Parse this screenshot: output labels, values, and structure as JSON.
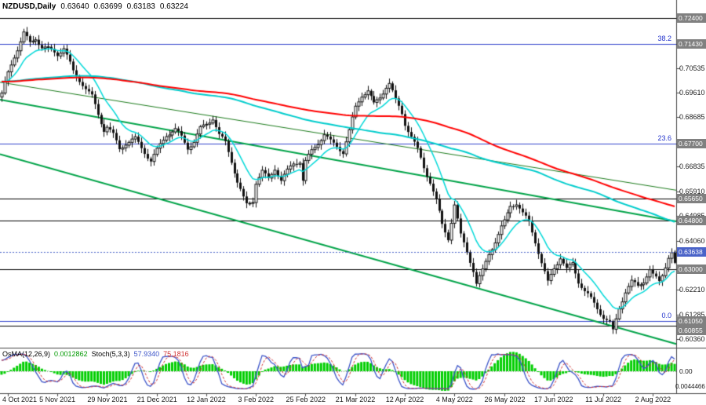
{
  "title": {
    "symbol_period": "NZDUSD,Daily",
    "open": "0.63640",
    "high": "0.63699",
    "low": "0.63183",
    "close": "0.63224"
  },
  "indicator_panel": {
    "osma_label": "OsMA(12,26,9)",
    "osma_value": "0.0012862",
    "stoch_label": "Stoch(5,3,3)",
    "stoch_main_value": "57.9340",
    "stoch_signal_value": "75.1816",
    "scale_zero_label": "0.00",
    "scale_bottom_label": "0.0044466"
  },
  "price_axis": {
    "grid_labels": [
      "0.70535",
      "0.69610",
      "0.68685",
      "0.66835",
      "0.65910",
      "0.64985",
      "0.64060",
      "0.62210",
      "0.61285",
      "0.60360"
    ],
    "line_badges": [
      "0.72400",
      "0.71430",
      "0.67700",
      "0.65650",
      "0.64800",
      "0.63000",
      "0.61050",
      "0.60855"
    ],
    "current_price_badge": "0.63638"
  },
  "time_axis": {
    "labels": [
      "4 Oct 2021",
      "5 Nov 2021",
      "29 Nov 2021",
      "21 Dec 2021",
      "12 Jan 2022",
      "3 Feb 2022",
      "25 Feb 2022",
      "21 Mar 2022",
      "12 Apr 2022",
      "4 May 2022",
      "26 May 2022",
      "17 Jun 2022",
      "11 Jul 2022",
      "2 Aug 2022"
    ],
    "first_label_bar": 2,
    "label_step_bars": 16
  },
  "fibonacci_levels": [
    {
      "label": "38.2",
      "price": 0.7143
    },
    {
      "label": "23.6",
      "price": 0.677
    },
    {
      "label": "0.0",
      "price": 0.6105
    }
  ],
  "horizontal_lines": [
    0.724,
    0.6565,
    0.648,
    0.63,
    0.60855
  ],
  "trend_lines": [
    {
      "from_bar": 0,
      "from_price": 0.7,
      "to_bar": 218,
      "to_price": 0.6595,
      "color": "#1a7a1a",
      "width": 1
    },
    {
      "from_bar": 0,
      "from_price": 0.6935,
      "to_bar": 218,
      "to_price": 0.6478,
      "color": "#00a348",
      "width": 2
    },
    {
      "from_bar": 0,
      "from_price": 0.673,
      "to_bar": 218,
      "to_price": 0.6018,
      "color": "#00a348",
      "width": 2
    }
  ],
  "moving_averages": [
    {
      "kind": "sma",
      "period": 150,
      "color": "#ff0000",
      "width": 2
    },
    {
      "kind": "sma",
      "period": 110,
      "color": "#00cccc",
      "width": 2
    },
    {
      "kind": "ema",
      "period": 12,
      "color": "#00d8d8",
      "width": 1.5
    }
  ],
  "colors": {
    "background": "#ffffff",
    "axis_text": "#1a1a1a",
    "badge_bg": "#808080",
    "badge_text": "#ffffff",
    "current_badge_bg": "#4a63c8",
    "fib": "#2233cc",
    "fib_line": "#3344cc",
    "level_line": "#000000",
    "osma_bars": "#00ce00",
    "stoch_main": "#3a52c8",
    "stoch_signal": "#d03030",
    "bull_candle": "#ffffff",
    "bear_candle": "#111111",
    "candle_outline": "#111111"
  },
  "chart_data": {
    "type": "candlestick",
    "symbol": "NZDUSD",
    "timeframe": "Daily",
    "bars": 218,
    "y_range": [
      0.601,
      0.7285
    ],
    "last_ohlc": {
      "open": 0.6364,
      "high": 0.63699,
      "low": 0.63183,
      "close": 0.63224
    },
    "price_waypoints": [
      [
        0,
        0.695
      ],
      [
        2,
        0.703
      ],
      [
        4,
        0.71
      ],
      [
        7,
        0.719
      ],
      [
        9,
        0.715
      ],
      [
        11,
        0.717
      ],
      [
        13,
        0.713
      ],
      [
        15,
        0.712
      ],
      [
        18,
        0.71
      ],
      [
        20,
        0.7125
      ],
      [
        23,
        0.704
      ],
      [
        26,
        0.7
      ],
      [
        29,
        0.695
      ],
      [
        31,
        0.688
      ],
      [
        33,
        0.682
      ],
      [
        34,
        0.683
      ],
      [
        36,
        0.6795
      ],
      [
        38,
        0.6745
      ],
      [
        40,
        0.677
      ],
      [
        43,
        0.679
      ],
      [
        46,
        0.6745
      ],
      [
        48,
        0.671
      ],
      [
        50,
        0.6745
      ],
      [
        53,
        0.68
      ],
      [
        56,
        0.6815
      ],
      [
        58,
        0.679
      ],
      [
        60,
        0.6755
      ],
      [
        62,
        0.678
      ],
      [
        64,
        0.683
      ],
      [
        66,
        0.685
      ],
      [
        68,
        0.687
      ],
      [
        70,
        0.68
      ],
      [
        72,
        0.677
      ],
      [
        74,
        0.67
      ],
      [
        76,
        0.662
      ],
      [
        78,
        0.656
      ],
      [
        79,
        0.654
      ],
      [
        81,
        0.656
      ],
      [
        82,
        0.663
      ],
      [
        84,
        0.667
      ],
      [
        86,
        0.664
      ],
      [
        88,
        0.668
      ],
      [
        90,
        0.663
      ],
      [
        92,
        0.666
      ],
      [
        94,
        0.669
      ],
      [
        96,
        0.67
      ],
      [
        97,
        0.663
      ],
      [
        98,
        0.67
      ],
      [
        100,
        0.6745
      ],
      [
        102,
        0.678
      ],
      [
        104,
        0.681
      ],
      [
        106,
        0.678
      ],
      [
        108,
        0.676
      ],
      [
        110,
        0.6735
      ],
      [
        112,
        0.681
      ],
      [
        114,
        0.69
      ],
      [
        116,
        0.695
      ],
      [
        118,
        0.697
      ],
      [
        120,
        0.692
      ],
      [
        122,
        0.695
      ],
      [
        124,
        0.699
      ],
      [
        125,
        0.7
      ],
      [
        127,
        0.693
      ],
      [
        129,
        0.688
      ],
      [
        130,
        0.684
      ],
      [
        132,
        0.679
      ],
      [
        134,
        0.674
      ],
      [
        136,
        0.668
      ],
      [
        138,
        0.663
      ],
      [
        140,
        0.656
      ],
      [
        142,
        0.647
      ],
      [
        144,
        0.642
      ],
      [
        146,
        0.654
      ],
      [
        148,
        0.642
      ],
      [
        150,
        0.636
      ],
      [
        152,
        0.629
      ],
      [
        153,
        0.624
      ],
      [
        155,
        0.629
      ],
      [
        157,
        0.636
      ],
      [
        159,
        0.641
      ],
      [
        161,
        0.646
      ],
      [
        162,
        0.648
      ],
      [
        164,
        0.654
      ],
      [
        166,
        0.6545
      ],
      [
        168,
        0.65
      ],
      [
        170,
        0.647
      ],
      [
        172,
        0.64
      ],
      [
        174,
        0.632
      ],
      [
        176,
        0.625
      ],
      [
        178,
        0.631
      ],
      [
        180,
        0.635
      ],
      [
        182,
        0.63
      ],
      [
        184,
        0.632
      ],
      [
        186,
        0.625
      ],
      [
        188,
        0.621
      ],
      [
        190,
        0.618
      ],
      [
        192,
        0.615
      ],
      [
        194,
        0.612
      ],
      [
        196,
        0.61
      ],
      [
        197,
        0.607
      ],
      [
        199,
        0.616
      ],
      [
        201,
        0.622
      ],
      [
        203,
        0.625
      ],
      [
        205,
        0.623
      ],
      [
        207,
        0.625
      ],
      [
        209,
        0.629
      ],
      [
        210,
        0.627
      ],
      [
        212,
        0.625
      ],
      [
        213,
        0.628
      ],
      [
        215,
        0.635
      ],
      [
        216,
        0.6365
      ],
      [
        217,
        0.6322
      ]
    ]
  }
}
